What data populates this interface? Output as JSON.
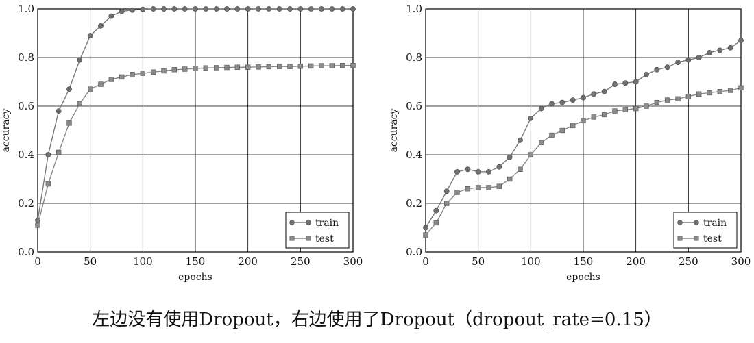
{
  "caption": "左边没有使用Dropout，右边使用了Dropout（dropout_rate=0.15）",
  "chart_data": [
    {
      "type": "line",
      "title": "",
      "xlabel": "epochs",
      "ylabel": "accuracy",
      "xlim": [
        0,
        300
      ],
      "ylim": [
        0.0,
        1.0
      ],
      "xticks": [
        0,
        50,
        100,
        150,
        200,
        250,
        300
      ],
      "yticks": [
        0.0,
        0.2,
        0.4,
        0.6,
        0.8,
        1.0
      ],
      "ytick_labels": [
        "0.0",
        "0.2",
        "0.4",
        "0.6",
        "0.8",
        "1.0"
      ],
      "legend_position": "bottom-right",
      "x": [
        0,
        10,
        20,
        30,
        40,
        50,
        60,
        70,
        80,
        90,
        100,
        110,
        120,
        130,
        140,
        150,
        160,
        170,
        180,
        190,
        200,
        210,
        220,
        230,
        240,
        250,
        260,
        270,
        280,
        290,
        300
      ],
      "series": [
        {
          "name": "train",
          "marker": "circle",
          "color": "#777777",
          "values": [
            0.13,
            0.4,
            0.58,
            0.67,
            0.79,
            0.89,
            0.93,
            0.97,
            0.99,
            0.995,
            0.998,
            1.0,
            1.0,
            1.0,
            1.0,
            1.0,
            1.0,
            1.0,
            1.0,
            1.0,
            1.0,
            1.0,
            1.0,
            1.0,
            1.0,
            1.0,
            1.0,
            1.0,
            1.0,
            1.0,
            1.0
          ]
        },
        {
          "name": "test",
          "marker": "square",
          "color": "#888888",
          "values": [
            0.11,
            0.28,
            0.41,
            0.53,
            0.61,
            0.67,
            0.69,
            0.71,
            0.72,
            0.73,
            0.735,
            0.74,
            0.745,
            0.75,
            0.752,
            0.755,
            0.757,
            0.758,
            0.759,
            0.76,
            0.76,
            0.761,
            0.762,
            0.763,
            0.763,
            0.764,
            0.765,
            0.766,
            0.766,
            0.767,
            0.767
          ]
        }
      ]
    },
    {
      "type": "line",
      "title": "",
      "xlabel": "epochs",
      "ylabel": "accuracy",
      "xlim": [
        0,
        300
      ],
      "ylim": [
        0.0,
        1.0
      ],
      "xticks": [
        0,
        50,
        100,
        150,
        200,
        250,
        300
      ],
      "yticks": [
        0.0,
        0.2,
        0.4,
        0.6,
        0.8,
        1.0
      ],
      "ytick_labels": [
        "0.0",
        "0.2",
        "0.4",
        "0.6",
        "0.8",
        "1.0"
      ],
      "legend_position": "bottom-right",
      "x": [
        0,
        10,
        20,
        30,
        40,
        50,
        60,
        70,
        80,
        90,
        100,
        110,
        120,
        130,
        140,
        150,
        160,
        170,
        180,
        190,
        200,
        210,
        220,
        230,
        240,
        250,
        260,
        270,
        280,
        290,
        300
      ],
      "series": [
        {
          "name": "train",
          "marker": "circle",
          "color": "#777777",
          "values": [
            0.1,
            0.17,
            0.25,
            0.33,
            0.34,
            0.33,
            0.33,
            0.35,
            0.39,
            0.46,
            0.55,
            0.59,
            0.61,
            0.615,
            0.625,
            0.635,
            0.65,
            0.66,
            0.69,
            0.695,
            0.7,
            0.73,
            0.75,
            0.76,
            0.78,
            0.79,
            0.8,
            0.82,
            0.83,
            0.84,
            0.87
          ]
        },
        {
          "name": "test",
          "marker": "square",
          "color": "#888888",
          "values": [
            0.07,
            0.12,
            0.2,
            0.245,
            0.26,
            0.265,
            0.265,
            0.27,
            0.3,
            0.34,
            0.4,
            0.45,
            0.48,
            0.5,
            0.52,
            0.54,
            0.555,
            0.565,
            0.58,
            0.585,
            0.59,
            0.6,
            0.615,
            0.625,
            0.63,
            0.64,
            0.65,
            0.655,
            0.66,
            0.665,
            0.675
          ]
        }
      ]
    }
  ]
}
